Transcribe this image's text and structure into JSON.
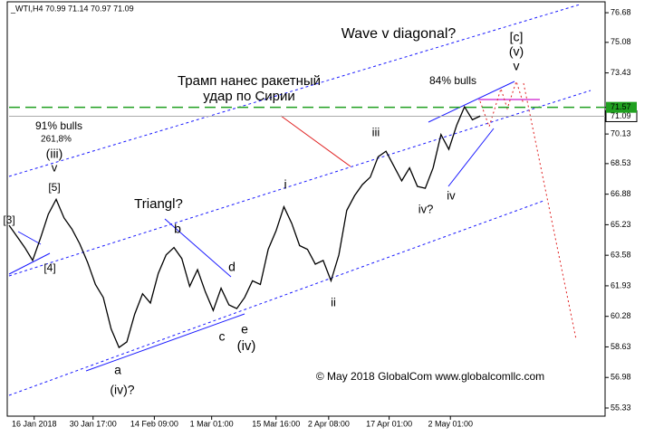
{
  "chart_data": {
    "type": "line",
    "title": "_WTI,H4  70.99 71.14 70.97 71.09",
    "series": [
      {
        "name": "WTI",
        "color": "#000000",
        "values": [
          65.2,
          64.6,
          64.0,
          63.3,
          64.5,
          65.8,
          66.6,
          65.6,
          65.0,
          64.2,
          63.2,
          62.0,
          61.3,
          59.6,
          58.6,
          58.9,
          60.4,
          61.5,
          61.0,
          62.6,
          63.6,
          64.0,
          63.4,
          61.9,
          62.8,
          61.6,
          60.6,
          61.8,
          60.9,
          60.7,
          61.3,
          62.2,
          62.0,
          63.9,
          64.9,
          66.2,
          65.3,
          64.1,
          63.9,
          63.1,
          63.3,
          62.2,
          63.6,
          66.0,
          66.8,
          67.4,
          67.8,
          68.9,
          69.2,
          68.4,
          67.6,
          68.3,
          67.3,
          67.2,
          68.3,
          70.1,
          69.3,
          70.6,
          71.6,
          70.9,
          71.1
        ]
      }
    ],
    "xlim": [
      0,
      75.9
    ],
    "xticks": [
      {
        "value": 3.2,
        "label": "16 Jan 2018"
      },
      {
        "value": 10.7,
        "label": "30 Jan 17:00"
      },
      {
        "value": 18.5,
        "label": "14 Feb 09:00"
      },
      {
        "value": 25.8,
        "label": "1 Mar 01:00"
      },
      {
        "value": 34.0,
        "label": "15 Mar 16:00"
      },
      {
        "value": 40.7,
        "label": "2 Apr 08:00"
      },
      {
        "value": 48.4,
        "label": "17 Apr 01:00"
      },
      {
        "value": 56.2,
        "label": "2 May 01:00"
      }
    ],
    "ylim": [
      54.89,
      77.27
    ],
    "yticks": [
      55.33,
      56.98,
      58.63,
      60.28,
      61.93,
      63.58,
      65.23,
      66.88,
      68.53,
      70.13,
      71.09,
      71.57,
      73.43,
      75.08,
      76.68
    ],
    "annotations": [
      "Wave v diagonal?",
      "[c]",
      "(v)",
      "v",
      "Трамп нанес ракетный",
      "удар по Сирии",
      "84% bulls",
      "91% bulls",
      "261,8%",
      "(iii)",
      "v",
      "[5]",
      "[4]",
      "Triangl?",
      "b",
      "d",
      "c",
      "e",
      "(iv)",
      "a",
      "(iv)?",
      "i",
      "ii",
      "iii",
      "iv?",
      "iv",
      "© May 2018 GlobalCom www.globalcomllc.com",
      "[3]"
    ]
  }
}
